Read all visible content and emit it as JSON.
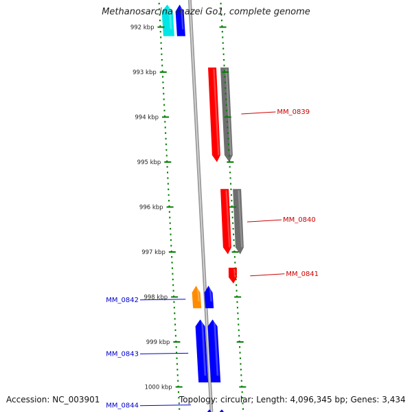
{
  "title": "Methanosarcina mazei Go1, complete genome",
  "footer": {
    "accession": "Accession: NC_003901",
    "summary": "Topology: circular; Length: 4,096,345 bp; Genes: 3,434"
  },
  "colors": {
    "forward_cds": "#ff0000",
    "forward_gene": "#6e6e6e",
    "reverse_cds": "#0000ff",
    "reverse_other": "#00e5e5",
    "reverse_orange": "#ff8c00",
    "ticks": "#008000",
    "forward_label": "#cc0000",
    "reverse_label": "#0000cc",
    "backbone": "#999999"
  },
  "ticks": [
    {
      "label": "992 kbp",
      "kb": 992
    },
    {
      "label": "993 kbp",
      "kb": 993
    },
    {
      "label": "994 kbp",
      "kb": 994
    },
    {
      "label": "995 kbp",
      "kb": 995
    },
    {
      "label": "996 kbp",
      "kb": 996
    },
    {
      "label": "997 kbp",
      "kb": 997
    },
    {
      "label": "998 kbp",
      "kb": 998
    },
    {
      "label": "999 kbp",
      "kb": 999
    },
    {
      "label": "1000 kbp",
      "kb": 1000
    }
  ],
  "genes": [
    {
      "strand": "reverse",
      "start_kb": 991.5,
      "end_kb": 992.2,
      "type": "other"
    },
    {
      "strand": "forward",
      "start_kb": 992.9,
      "end_kb": 995.0,
      "type": "cds"
    },
    {
      "strand": "forward",
      "start_kb": 995.6,
      "end_kb": 997.05,
      "type": "cds"
    },
    {
      "strand": "forward",
      "start_kb": 997.35,
      "end_kb": 997.7,
      "type": "cds",
      "single": true
    },
    {
      "strand": "reverse",
      "start_kb": 997.75,
      "end_kb": 998.25,
      "type": "orange"
    },
    {
      "strand": "reverse",
      "start_kb": 998.5,
      "end_kb": 999.9,
      "type": "cds"
    },
    {
      "strand": "reverse",
      "start_kb": 1000.5,
      "end_kb": 1000.8,
      "type": "cds"
    }
  ],
  "labels": [
    {
      "text": "MM_0839",
      "strand": "forward",
      "kb": 993.9
    },
    {
      "text": "MM_0840",
      "strand": "forward",
      "kb": 996.3
    },
    {
      "text": "MM_0841",
      "strand": "forward",
      "kb": 997.5
    },
    {
      "text": "MM_0842",
      "strand": "reverse",
      "kb": 998.05
    },
    {
      "text": "MM_0843",
      "strand": "reverse",
      "kb": 999.25
    },
    {
      "text": "MM_0844",
      "strand": "reverse",
      "kb": 1000.4
    }
  ]
}
